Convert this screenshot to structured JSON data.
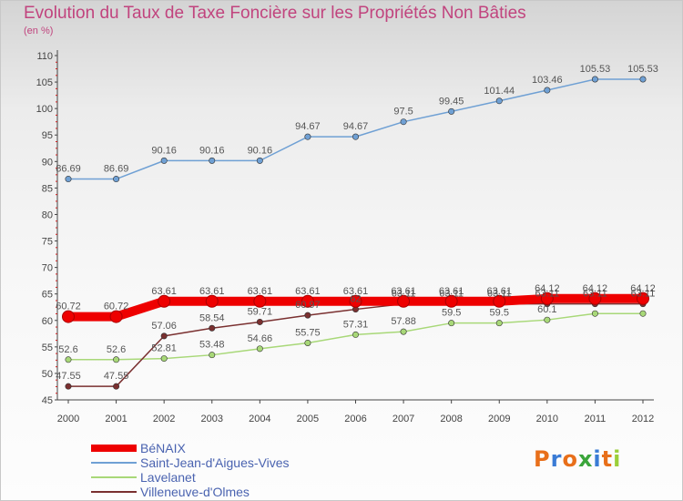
{
  "title": "Evolution du Taux de Taxe Foncière sur les Propriétés Non Bâties",
  "unit": "(en %)",
  "logo": "Proxiti",
  "chart_data": {
    "type": "line",
    "title": "Evolution du Taux de Taxe Foncière sur les Propriétés Non Bâties",
    "ylabel": "(en %)",
    "xlabel": "",
    "ylim": [
      45,
      110
    ],
    "yticks": [
      45,
      50,
      55,
      60,
      65,
      70,
      75,
      80,
      85,
      90,
      95,
      100,
      105,
      110
    ],
    "x": [
      "2000",
      "2001",
      "2002",
      "2003",
      "2004",
      "2005",
      "2006",
      "2007",
      "2008",
      "2009",
      "2010",
      "2011",
      "2012"
    ],
    "grid": false,
    "legend": "bottom-left",
    "series": [
      {
        "name": "BéNAIX",
        "color": "#ee0000",
        "values": [
          60.72,
          60.72,
          63.61,
          63.61,
          63.61,
          63.61,
          63.61,
          63.61,
          63.61,
          63.61,
          64.12,
          64.12,
          64.12
        ],
        "labels": [
          "60.72",
          "60.72",
          "63.61",
          "63.61",
          "63.61",
          "63.61",
          "63.61",
          "63.61",
          "63.61",
          "63.61",
          "64.12",
          "64.12",
          "64.12"
        ]
      },
      {
        "name": "Saint-Jean-d'Aigues-Vives",
        "color": "#6fa0d4",
        "values": [
          86.69,
          86.69,
          90.16,
          90.16,
          90.16,
          94.67,
          94.67,
          97.5,
          99.45,
          101.44,
          103.46,
          105.53,
          105.53
        ],
        "labels": [
          "86.69",
          "86.69",
          "90.16",
          "90.16",
          "90.16",
          "94.67",
          "94.67",
          "97.5",
          "99.45",
          "101.44",
          "103.46",
          "105.53",
          "105.53"
        ]
      },
      {
        "name": "Lavelanet",
        "color": "#a8d878",
        "values": [
          52.6,
          52.6,
          52.81,
          53.48,
          54.66,
          55.75,
          57.31,
          57.88,
          59.5,
          59.5,
          60.1,
          61.3,
          61.3
        ],
        "labels": [
          "52.6",
          "52.6",
          "52.81",
          "53.48",
          "54.66",
          "55.75",
          "57.31",
          "57.88",
          "59.5",
          "59.5",
          "60.1",
          "",
          ""
        ]
      },
      {
        "name": "Villeneuve-d'Olmes",
        "color": "#7a3030",
        "values": [
          47.55,
          47.55,
          57.06,
          58.54,
          59.71,
          60.97,
          62.1,
          63.11,
          63.11,
          63.11,
          63.11,
          63.11,
          63.11
        ],
        "labels": [
          "47.55",
          "47.55",
          "57.06",
          "58.54",
          "59.71",
          "60.97",
          "62",
          "63.11",
          "63.11",
          "63.11",
          "63.11",
          "63.11",
          "63.11"
        ]
      }
    ]
  }
}
